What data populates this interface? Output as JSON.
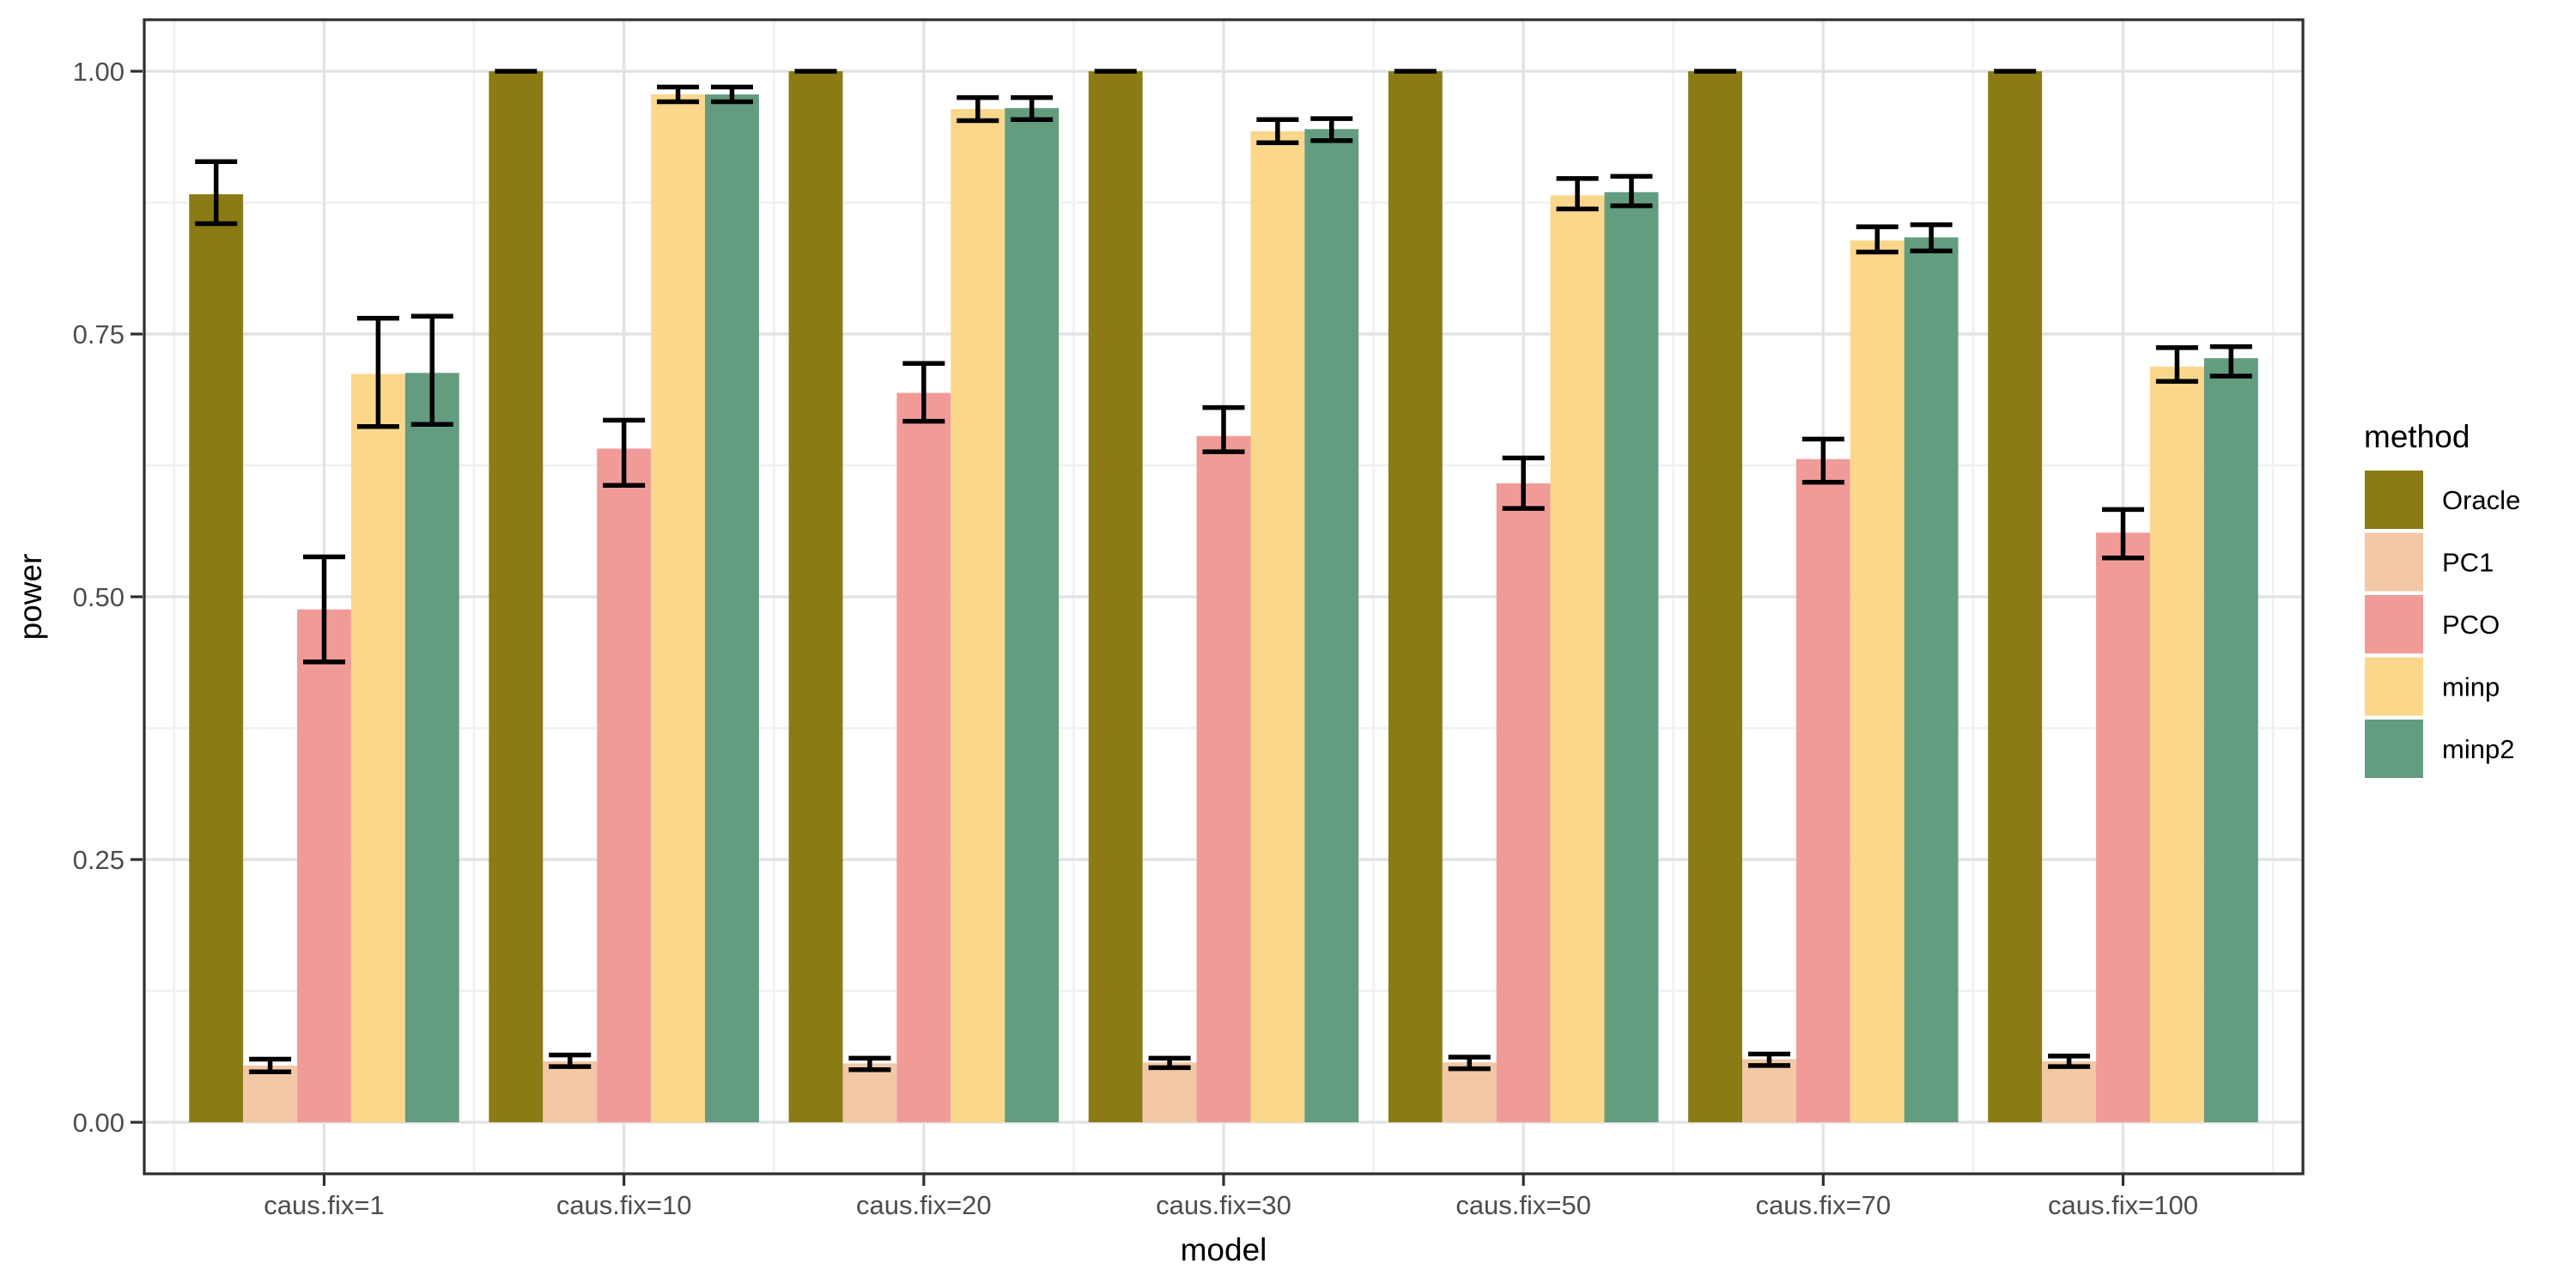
{
  "chart_data": {
    "type": "bar",
    "bar_mode": "dodge",
    "title": "",
    "xlabel": "model",
    "ylabel": "power",
    "categories": [
      "caus.fix=1",
      "caus.fix=10",
      "caus.fix=20",
      "caus.fix=30",
      "caus.fix=50",
      "caus.fix=70",
      "caus.fix=100"
    ],
    "series": [
      {
        "name": "Oracle",
        "color": "#8B7B15",
        "values": [
          0.883,
          1.0,
          1.0,
          1.0,
          1.0,
          1.0,
          1.0
        ],
        "err_low": [
          0.855,
          1.0,
          1.0,
          1.0,
          1.0,
          1.0,
          1.0
        ],
        "err_high": [
          0.914,
          1.0,
          1.0,
          1.0,
          1.0,
          1.0,
          1.0
        ]
      },
      {
        "name": "PC1",
        "color": "#F2C8A6",
        "values": [
          0.054,
          0.058,
          0.056,
          0.057,
          0.057,
          0.06,
          0.058
        ],
        "err_low": [
          0.048,
          0.053,
          0.05,
          0.052,
          0.051,
          0.054,
          0.053
        ],
        "err_high": [
          0.06,
          0.064,
          0.061,
          0.061,
          0.062,
          0.065,
          0.063
        ]
      },
      {
        "name": "PCO",
        "color": "#F19B99",
        "values": [
          0.488,
          0.641,
          0.694,
          0.653,
          0.608,
          0.631,
          0.561
        ],
        "err_low": [
          0.438,
          0.606,
          0.667,
          0.638,
          0.584,
          0.609,
          0.537
        ],
        "err_high": [
          0.538,
          0.668,
          0.722,
          0.68,
          0.632,
          0.65,
          0.583
        ]
      },
      {
        "name": "minp",
        "color": "#FBD78C",
        "values": [
          0.712,
          0.978,
          0.964,
          0.943,
          0.882,
          0.839,
          0.719
        ],
        "err_low": [
          0.662,
          0.971,
          0.953,
          0.932,
          0.869,
          0.828,
          0.705
        ],
        "err_high": [
          0.765,
          0.985,
          0.975,
          0.954,
          0.898,
          0.852,
          0.737
        ]
      },
      {
        "name": "minp2",
        "color": "#649C80",
        "values": [
          0.713,
          0.978,
          0.965,
          0.945,
          0.885,
          0.842,
          0.727
        ],
        "err_low": [
          0.664,
          0.971,
          0.954,
          0.934,
          0.872,
          0.829,
          0.71
        ],
        "err_high": [
          0.767,
          0.985,
          0.975,
          0.955,
          0.9,
          0.854,
          0.738
        ]
      }
    ],
    "ylim": [
      0,
      1
    ],
    "yticks": [
      0,
      0.25,
      0.5,
      0.75,
      1
    ],
    "ytick_labels": [
      "0.00",
      "0.25",
      "0.50",
      "0.75",
      "1.00"
    ],
    "grid": "major-and-minor",
    "error_bars": true,
    "legend": {
      "title": "method",
      "position": "right",
      "entries": [
        "Oracle",
        "PC1",
        "PCO",
        "minp",
        "minp2"
      ]
    }
  },
  "style_colors": {
    "panel_background": "#FFFFFF",
    "figure_background": "#FFFFFF",
    "grid_major": "#E3E3E3",
    "grid_minor": "#F0F0F0",
    "panel_border": "#2E2E2E",
    "tick_mark": "#2E2E2E",
    "tick_text": "#4D4D4D",
    "axis_title_text": "#000000",
    "legend_text": "#000000",
    "error_bar": "#000000"
  }
}
